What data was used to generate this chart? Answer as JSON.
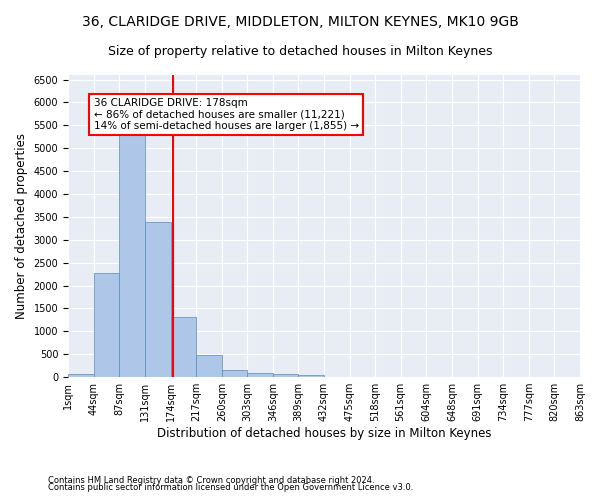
{
  "title_line1": "36, CLARIDGE DRIVE, MIDDLETON, MILTON KEYNES, MK10 9GB",
  "title_line2": "Size of property relative to detached houses in Milton Keynes",
  "xlabel": "Distribution of detached houses by size in Milton Keynes",
  "ylabel": "Number of detached properties",
  "footnote1": "Contains HM Land Registry data © Crown copyright and database right 2024.",
  "footnote2": "Contains public sector information licensed under the Open Government Licence v3.0.",
  "bar_edges": [
    1,
    44,
    87,
    131,
    174,
    217,
    260,
    303,
    346,
    389,
    432,
    475,
    518,
    561,
    604,
    648,
    691,
    734,
    777,
    820,
    863
  ],
  "bar_heights": [
    75,
    2270,
    5430,
    3380,
    1310,
    480,
    160,
    90,
    70,
    55,
    0,
    0,
    0,
    0,
    0,
    0,
    0,
    0,
    0,
    0
  ],
  "bar_color": "#aec6e8",
  "bar_edge_color": "#5a8aba",
  "vline_x": 178,
  "vline_color": "red",
  "annotation_text": "36 CLARIDGE DRIVE: 178sqm\n← 86% of detached houses are smaller (11,221)\n14% of semi-detached houses are larger (1,855) →",
  "annotation_box_color": "white",
  "annotation_box_edge_color": "red",
  "ylim": [
    0,
    6600
  ],
  "yticks": [
    0,
    500,
    1000,
    1500,
    2000,
    2500,
    3000,
    3500,
    4000,
    4500,
    5000,
    5500,
    6000,
    6500
  ],
  "plot_bg_color": "#e8ecf5",
  "title_fontsize": 10,
  "subtitle_fontsize": 9,
  "axis_label_fontsize": 8.5,
  "tick_fontsize": 7,
  "annotation_fontsize": 7.5
}
